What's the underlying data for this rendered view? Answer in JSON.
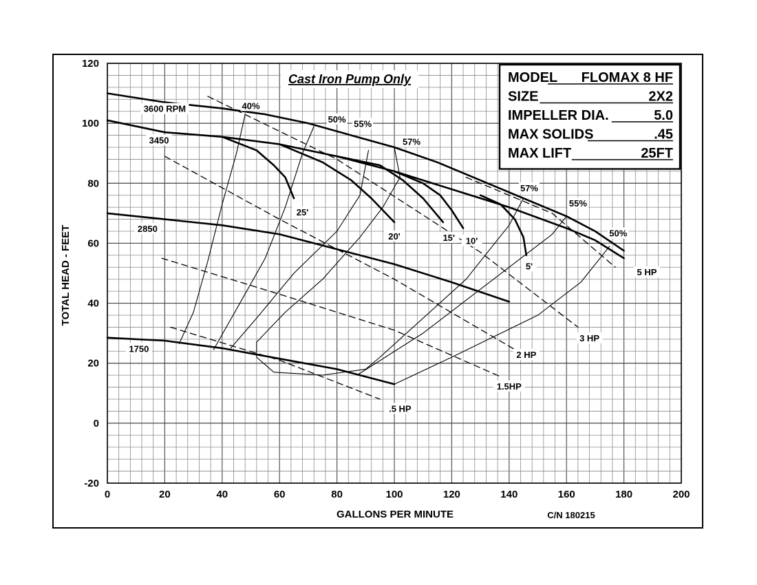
{
  "chart_data": {
    "type": "line",
    "title": "Cast Iron Pump Only",
    "xlabel": "GALLONS PER MINUTE",
    "ylabel": "TOTAL HEAD - FEET",
    "xlim": [
      0,
      200
    ],
    "ylim": [
      -20,
      120
    ],
    "x_ticks": [
      0,
      20,
      40,
      60,
      80,
      100,
      120,
      140,
      160,
      180,
      200
    ],
    "y_ticks": [
      -20,
      0,
      20,
      40,
      60,
      80,
      100,
      120
    ],
    "grid": true,
    "catalog_number": "C/N 180215",
    "spec_box": {
      "position": "top-right",
      "rows": [
        {
          "label": "MODEL",
          "value": "FLOMAX 8 HF"
        },
        {
          "label": "SIZE",
          "value": "2X2"
        },
        {
          "label": "IMPELLER DIA.",
          "value": "5.0"
        },
        {
          "label": "MAX SOLIDS",
          "value": ".45"
        },
        {
          "label": "MAX LIFT",
          "value": "25FT"
        }
      ]
    },
    "speed_curves": [
      {
        "name": "3600 RPM",
        "points": [
          [
            0,
            110
          ],
          [
            20,
            107
          ],
          [
            40,
            105
          ],
          [
            55,
            103
          ],
          [
            70,
            100
          ],
          [
            85,
            96
          ],
          [
            100,
            92
          ],
          [
            115,
            87
          ],
          [
            130,
            81
          ],
          [
            145,
            75
          ],
          [
            160,
            69
          ],
          [
            170,
            64
          ],
          [
            180,
            57.5
          ]
        ]
      },
      {
        "name": "3450",
        "points": [
          [
            0,
            101
          ],
          [
            20,
            97
          ],
          [
            40,
            95.5
          ],
          [
            60,
            93
          ],
          [
            80,
            89
          ],
          [
            100,
            84
          ],
          [
            120,
            78
          ],
          [
            140,
            72
          ],
          [
            160,
            65
          ],
          [
            170,
            61
          ],
          [
            180,
            55
          ]
        ]
      },
      {
        "name": "2850",
        "points": [
          [
            0,
            70
          ],
          [
            20,
            68
          ],
          [
            40,
            66
          ],
          [
            60,
            63
          ],
          [
            80,
            58
          ],
          [
            100,
            53
          ],
          [
            120,
            47
          ],
          [
            140,
            40.5
          ]
        ]
      },
      {
        "name": "1750",
        "points": [
          [
            0,
            28.5
          ],
          [
            20,
            27.5
          ],
          [
            40,
            25
          ],
          [
            60,
            21.5
          ],
          [
            80,
            18
          ],
          [
            100,
            13
          ]
        ]
      }
    ],
    "lift_curves": [
      {
        "name": "25'",
        "points": [
          [
            40,
            95.5
          ],
          [
            52,
            91
          ],
          [
            58,
            86
          ],
          [
            62,
            82
          ],
          [
            65,
            75
          ]
        ]
      },
      {
        "name": "20'",
        "points": [
          [
            60,
            93
          ],
          [
            75,
            87
          ],
          [
            85,
            81
          ],
          [
            92,
            75
          ],
          [
            100,
            67
          ]
        ]
      },
      {
        "name": "15'",
        "points": [
          [
            80,
            89
          ],
          [
            95,
            86
          ],
          [
            103,
            81
          ],
          [
            110,
            75
          ],
          [
            117,
            67
          ]
        ]
      },
      {
        "name": "10'",
        "points": [
          [
            100,
            84
          ],
          [
            110,
            80
          ],
          [
            116,
            76
          ],
          [
            120,
            71
          ],
          [
            124,
            65
          ]
        ]
      },
      {
        "name": "5'",
        "points": [
          [
            130,
            76
          ],
          [
            137,
            73
          ],
          [
            142,
            68
          ],
          [
            145,
            62
          ],
          [
            146,
            56
          ]
        ]
      }
    ],
    "efficiency_curves": [
      {
        "name": "40%",
        "points": [
          [
            25,
            26.5
          ],
          [
            30,
            37
          ],
          [
            35,
            54
          ],
          [
            40,
            73
          ],
          [
            45,
            90
          ],
          [
            48,
            103
          ]
        ]
      },
      {
        "name": "50%",
        "points": [
          [
            37,
            24.5
          ],
          [
            45,
            38
          ],
          [
            55,
            55
          ],
          [
            62,
            72
          ],
          [
            68,
            90
          ],
          [
            72,
            99
          ]
        ]
      },
      {
        "name": "55%",
        "points": [
          [
            43,
            25
          ],
          [
            52,
            35
          ],
          [
            65,
            50
          ],
          [
            80,
            64
          ],
          [
            88,
            76
          ],
          [
            91,
            91
          ]
        ]
      },
      {
        "name": "57%",
        "points": [
          [
            100,
            92
          ],
          [
            102,
            82
          ],
          [
            96,
            72
          ],
          [
            88,
            62
          ],
          [
            75,
            48
          ],
          [
            62,
            37
          ],
          [
            52,
            27
          ],
          [
            52,
            22
          ],
          [
            58,
            17
          ],
          [
            75,
            16
          ],
          [
            90,
            18
          ],
          [
            95,
            22
          ],
          [
            125,
            48
          ],
          [
            140,
            66
          ],
          [
            145,
            75
          ]
        ]
      },
      {
        "name": "55%",
        "points": [
          [
            87,
            16
          ],
          [
            110,
            30
          ],
          [
            140,
            52
          ],
          [
            155,
            63
          ],
          [
            160,
            69
          ]
        ]
      },
      {
        "name": "50%",
        "points": [
          [
            100,
            13
          ],
          [
            120,
            22
          ],
          [
            150,
            36
          ],
          [
            165,
            47
          ],
          [
            175,
            59
          ]
        ]
      }
    ],
    "horsepower_lines": [
      {
        "name": "5 HP",
        "points": [
          [
            125,
            82
          ],
          [
            155,
            70
          ],
          [
            177,
            52
          ]
        ]
      },
      {
        "name": "3 HP",
        "points": [
          [
            35,
            109
          ],
          [
            80,
            88
          ],
          [
            130,
            57
          ],
          [
            164,
            32
          ]
        ]
      },
      {
        "name": "2 HP",
        "points": [
          [
            20,
            89
          ],
          [
            60,
            68
          ],
          [
            100,
            48
          ],
          [
            143,
            24
          ]
        ]
      },
      {
        "name": "1.5HP",
        "points": [
          [
            19,
            55
          ],
          [
            60,
            43
          ],
          [
            100,
            31
          ],
          [
            137,
            15.5
          ]
        ]
      },
      {
        "name": ".5 HP",
        "points": [
          [
            22,
            32
          ],
          [
            60,
            21
          ],
          [
            95,
            8
          ]
        ]
      }
    ],
    "labels": [
      {
        "text": "3600 RPM",
        "x": 20,
        "y": 104
      },
      {
        "text": "3450",
        "x": 18,
        "y": 93.5
      },
      {
        "text": "2850",
        "x": 14,
        "y": 64
      },
      {
        "text": "1750",
        "x": 11,
        "y": 24
      },
      {
        "text": "40%",
        "x": 50,
        "y": 105
      },
      {
        "text": "50%",
        "x": 80,
        "y": 100.5
      },
      {
        "text": "55%",
        "x": 89,
        "y": 99
      },
      {
        "text": "57%",
        "x": 106,
        "y": 93
      },
      {
        "text": "57%",
        "x": 147,
        "y": 77.5
      },
      {
        "text": "55%",
        "x": 164,
        "y": 72.5
      },
      {
        "text": "50%",
        "x": 178,
        "y": 62.5
      },
      {
        "text": "25'",
        "x": 68,
        "y": 69.5
      },
      {
        "text": "20'",
        "x": 100,
        "y": 61.5
      },
      {
        "text": "15'",
        "x": 119,
        "y": 61
      },
      {
        "text": "10'",
        "x": 127,
        "y": 60
      },
      {
        "text": "5'",
        "x": 147,
        "y": 51.5
      },
      {
        "text": "5 HP",
        "x": 188,
        "y": 49.5
      },
      {
        "text": "3 HP",
        "x": 168,
        "y": 27.5
      },
      {
        "text": "2 HP",
        "x": 146,
        "y": 22
      },
      {
        "text": "1.5HP",
        "x": 140,
        "y": 11.5
      },
      {
        "text": ".5 HP",
        "x": 102,
        "y": 4
      }
    ]
  }
}
